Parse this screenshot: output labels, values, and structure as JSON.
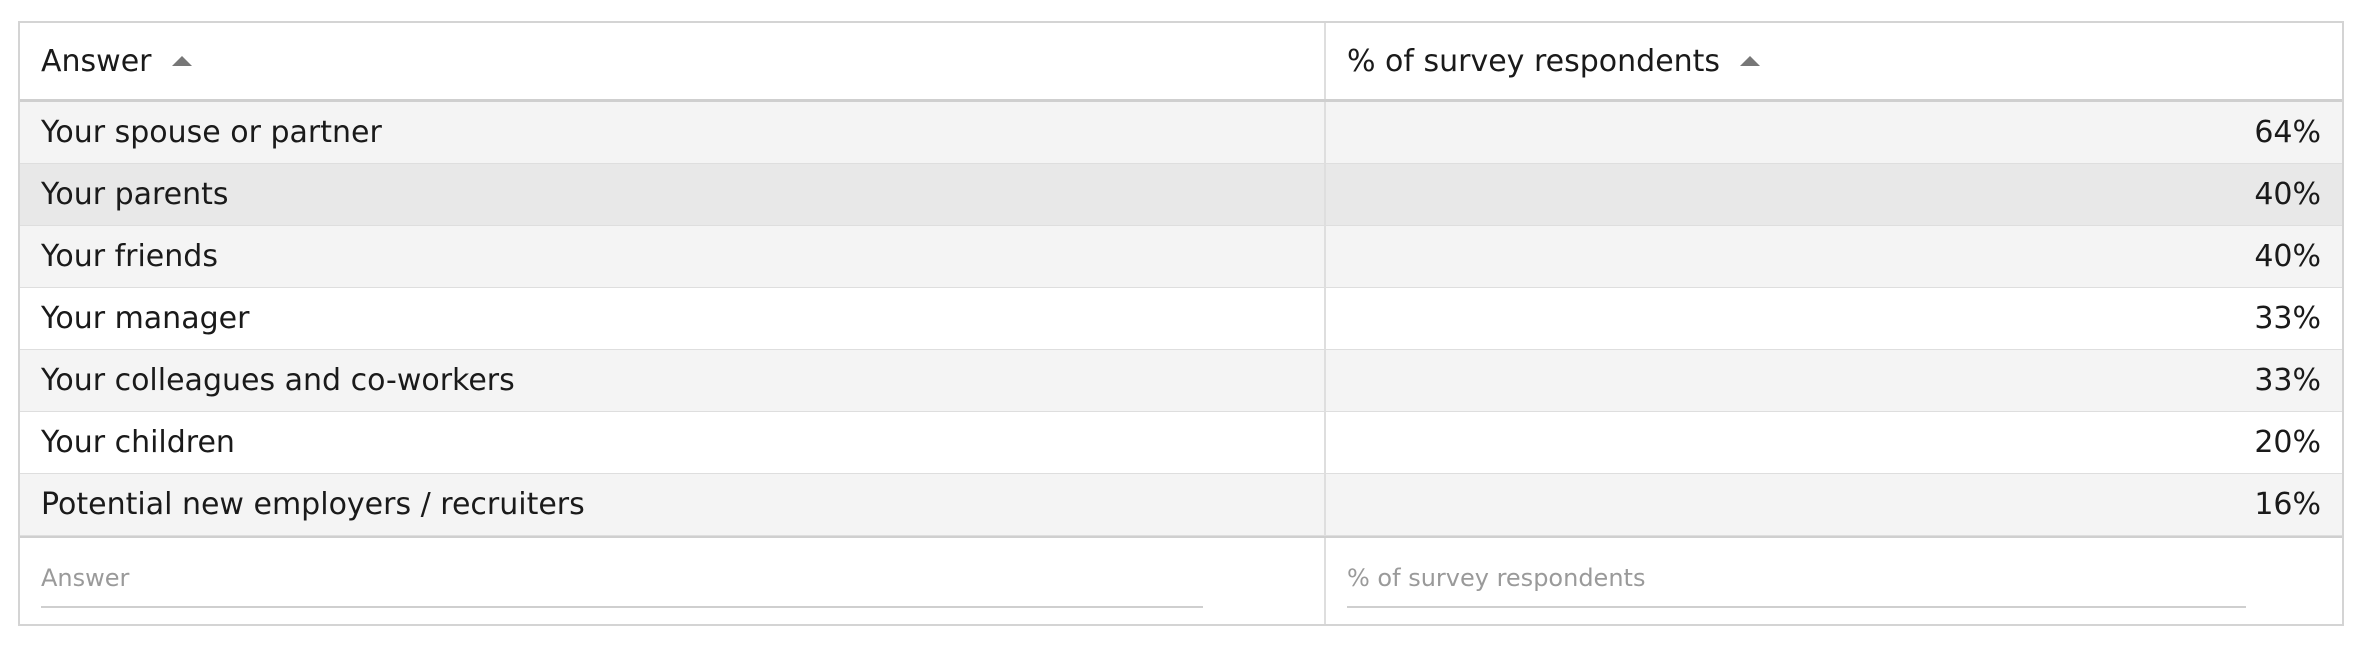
{
  "table": {
    "headers": [
      "Answer",
      "% of survey respondents"
    ],
    "rows": [
      [
        "Your spouse or partner",
        "64%"
      ],
      [
        "Your parents",
        "40%"
      ],
      [
        "Your friends",
        "40%"
      ],
      [
        "Your manager",
        "33%"
      ],
      [
        "Your colleagues and co-workers",
        "33%"
      ],
      [
        "Your children",
        "20%"
      ],
      [
        "Potential new employers / recruiters",
        "16%"
      ]
    ],
    "filters": [
      "Answer",
      "% of survey respondents"
    ]
  }
}
